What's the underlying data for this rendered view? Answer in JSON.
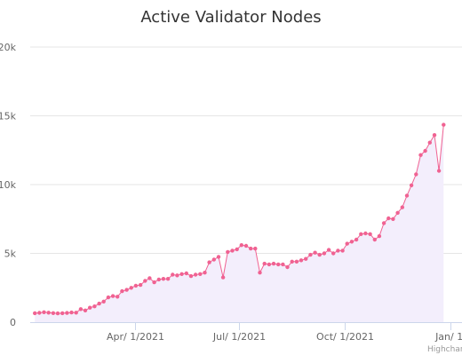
{
  "chart_data": {
    "type": "area",
    "title": "Active Validator Nodes",
    "xlabel": "",
    "ylabel": "",
    "x_type": "datetime",
    "xlim": [
      "2020-12-31",
      "2022-01-11"
    ],
    "ylim": [
      0,
      20000
    ],
    "y_ticks": [
      {
        "value": 0,
        "label": "0"
      },
      {
        "value": 5000,
        "label": "5k"
      },
      {
        "value": 10000,
        "label": "10k"
      },
      {
        "value": 15000,
        "label": "15k"
      },
      {
        "value": 20000,
        "label": "20k"
      }
    ],
    "x_ticks": [
      {
        "value": "2021-04-01",
        "label": "Apr/ 1/2021"
      },
      {
        "value": "2021-07-01",
        "label": "Jul/ 1/2021"
      },
      {
        "value": "2021-10-01",
        "label": "Oct/ 1/2021"
      },
      {
        "value": "2022-01-01",
        "label": "Jan/ 1/"
      }
    ],
    "grid": true,
    "legend": "none",
    "series": [
      {
        "color": "#f06292",
        "fill": "#f3eefc",
        "points": [
          [
            "2021-01-04",
            650
          ],
          [
            "2021-01-08",
            680
          ],
          [
            "2021-01-12",
            720
          ],
          [
            "2021-01-16",
            690
          ],
          [
            "2021-01-20",
            660
          ],
          [
            "2021-01-24",
            640
          ],
          [
            "2021-01-28",
            650
          ],
          [
            "2021-02-01",
            670
          ],
          [
            "2021-02-05",
            700
          ],
          [
            "2021-02-09",
            690
          ],
          [
            "2021-02-13",
            950
          ],
          [
            "2021-02-17",
            850
          ],
          [
            "2021-02-21",
            1050
          ],
          [
            "2021-02-25",
            1150
          ],
          [
            "2021-03-01",
            1350
          ],
          [
            "2021-03-05",
            1500
          ],
          [
            "2021-03-09",
            1800
          ],
          [
            "2021-03-13",
            1900
          ],
          [
            "2021-03-17",
            1850
          ],
          [
            "2021-03-21",
            2250
          ],
          [
            "2021-03-25",
            2350
          ],
          [
            "2021-03-29",
            2500
          ],
          [
            "2021-04-02",
            2650
          ],
          [
            "2021-04-06",
            2700
          ],
          [
            "2021-04-10",
            3000
          ],
          [
            "2021-04-14",
            3200
          ],
          [
            "2021-04-18",
            2900
          ],
          [
            "2021-04-22",
            3100
          ],
          [
            "2021-04-26",
            3150
          ],
          [
            "2021-04-30",
            3150
          ],
          [
            "2021-05-04",
            3450
          ],
          [
            "2021-05-08",
            3400
          ],
          [
            "2021-05-12",
            3500
          ],
          [
            "2021-05-16",
            3550
          ],
          [
            "2021-05-20",
            3350
          ],
          [
            "2021-05-24",
            3450
          ],
          [
            "2021-05-28",
            3500
          ],
          [
            "2021-06-01",
            3600
          ],
          [
            "2021-06-05",
            4350
          ],
          [
            "2021-06-09",
            4550
          ],
          [
            "2021-06-13",
            4750
          ],
          [
            "2021-06-17",
            3250
          ],
          [
            "2021-06-21",
            5100
          ],
          [
            "2021-06-25",
            5200
          ],
          [
            "2021-06-29",
            5300
          ],
          [
            "2021-07-03",
            5600
          ],
          [
            "2021-07-07",
            5550
          ],
          [
            "2021-07-11",
            5350
          ],
          [
            "2021-07-15",
            5350
          ],
          [
            "2021-07-19",
            3600
          ],
          [
            "2021-07-23",
            4250
          ],
          [
            "2021-07-27",
            4200
          ],
          [
            "2021-07-31",
            4250
          ],
          [
            "2021-08-04",
            4200
          ],
          [
            "2021-08-08",
            4200
          ],
          [
            "2021-08-12",
            4000
          ],
          [
            "2021-08-16",
            4400
          ],
          [
            "2021-08-20",
            4400
          ],
          [
            "2021-08-24",
            4500
          ],
          [
            "2021-08-28",
            4600
          ],
          [
            "2021-09-01",
            4900
          ],
          [
            "2021-09-05",
            5050
          ],
          [
            "2021-09-09",
            4900
          ],
          [
            "2021-09-13",
            5000
          ],
          [
            "2021-09-17",
            5250
          ],
          [
            "2021-09-21",
            5000
          ],
          [
            "2021-09-25",
            5200
          ],
          [
            "2021-09-29",
            5200
          ],
          [
            "2021-10-03",
            5700
          ],
          [
            "2021-10-07",
            5850
          ],
          [
            "2021-10-11",
            6000
          ],
          [
            "2021-10-15",
            6400
          ],
          [
            "2021-10-19",
            6450
          ],
          [
            "2021-10-23",
            6400
          ],
          [
            "2021-10-27",
            6000
          ],
          [
            "2021-10-31",
            6250
          ],
          [
            "2021-11-04",
            7200
          ],
          [
            "2021-11-08",
            7550
          ],
          [
            "2021-11-12",
            7500
          ],
          [
            "2021-11-16",
            7950
          ],
          [
            "2021-11-20",
            8350
          ],
          [
            "2021-11-24",
            9200
          ],
          [
            "2021-11-28",
            9950
          ],
          [
            "2021-12-02",
            10750
          ],
          [
            "2021-12-06",
            12150
          ],
          [
            "2021-12-10",
            12450
          ],
          [
            "2021-12-14",
            13050
          ],
          [
            "2021-12-18",
            13600
          ],
          [
            "2021-12-22",
            11000
          ],
          [
            "2021-12-26",
            14350
          ]
        ]
      }
    ]
  },
  "credit": "Highchar"
}
